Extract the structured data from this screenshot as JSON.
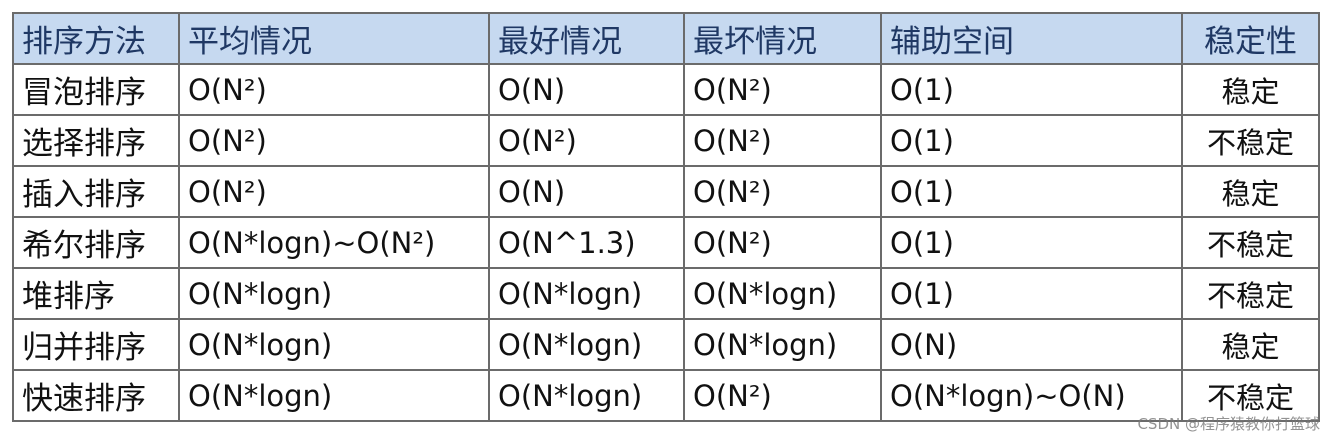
{
  "table": {
    "header": [
      "排序方法",
      "平均情况",
      "最好情况",
      "最坏情况",
      "辅助空间",
      "稳定性"
    ],
    "rows": [
      [
        "冒泡排序",
        "O(N²)",
        "O(N)",
        "O(N²)",
        "O(1)",
        "稳定"
      ],
      [
        "选择排序",
        "O(N²)",
        "O(N²)",
        "O(N²)",
        "O(1)",
        "不稳定"
      ],
      [
        "插入排序",
        "O(N²)",
        "O(N)",
        "O(N²)",
        "O(1)",
        "稳定"
      ],
      [
        "希尔排序",
        "O(N*logn)~O(N²)",
        "O(N^1.3)",
        "O(N²)",
        "O(1)",
        "不稳定"
      ],
      [
        "堆排序",
        "O(N*logn)",
        "O(N*logn)",
        "O(N*logn)",
        "O(1)",
        "不稳定"
      ],
      [
        "归并排序",
        "O(N*logn)",
        "O(N*logn)",
        "O(N*logn)",
        "O(N)",
        "稳定"
      ],
      [
        "快速排序",
        "O(N*logn)",
        "O(N*logn)",
        "O(N²)",
        "O(N*logn)~O(N)",
        "不稳定"
      ]
    ]
  },
  "watermark": "CSDN @程序猿教你打篮球"
}
